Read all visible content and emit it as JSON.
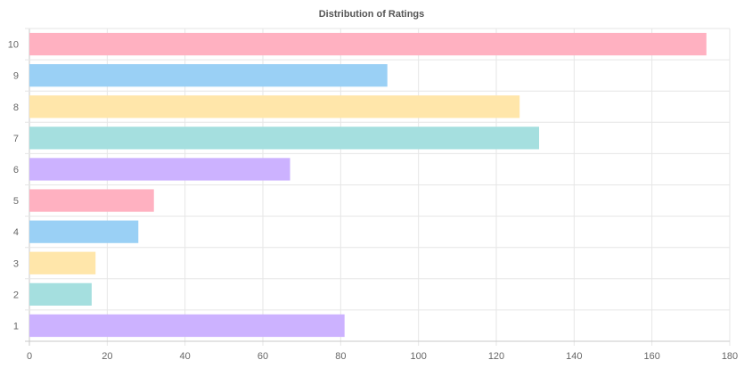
{
  "chart_data": {
    "type": "bar",
    "orientation": "horizontal",
    "title": "Distribution of Ratings",
    "xlabel": "",
    "ylabel": "",
    "categories": [
      "10",
      "9",
      "8",
      "7",
      "6",
      "5",
      "4",
      "3",
      "2",
      "1"
    ],
    "values": [
      174,
      92,
      126,
      131,
      67,
      32,
      28,
      17,
      16,
      81
    ],
    "xlim": [
      0,
      180
    ],
    "x_ticks": [
      "0",
      "20",
      "40",
      "60",
      "80",
      "100",
      "120",
      "140",
      "160",
      "180"
    ],
    "grid": true,
    "legend": "none",
    "colors": [
      "#ffb1c1",
      "#9ad0f5",
      "#ffe6aa",
      "#a5dfdf",
      "#ccb2ff",
      "#ffb1c1",
      "#9ad0f5",
      "#ffe6aa",
      "#a5dfdf",
      "#ccb2ff"
    ]
  }
}
